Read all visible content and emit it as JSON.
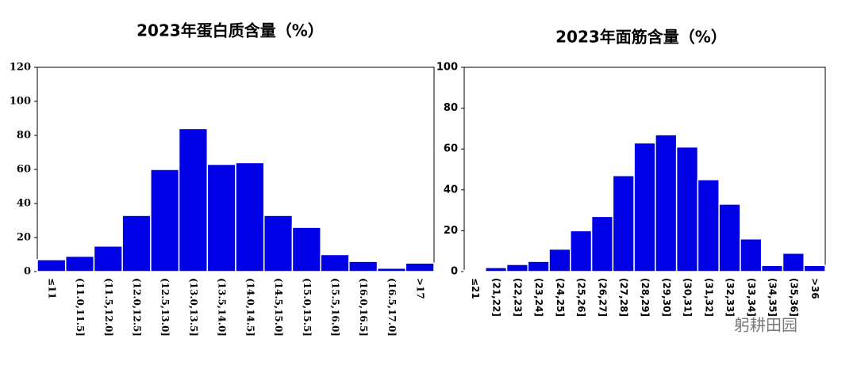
{
  "chart_data": [
    {
      "type": "bar",
      "title": "2023年蛋白质含量（%）",
      "categories": [
        "≤11",
        "(11.0,11.5]",
        "(11.5,12.0]",
        "(12.0,12.5]",
        "(12.5,13.0]",
        "(13.0,13.5]",
        "(13.5,14.0]",
        "(14.0,14.5]",
        "(14.5,15.0]",
        "(15.0,15.5]",
        "(15.5,16.0]",
        "(16.0,16.5]",
        "(16.5,17.0]",
        ">17"
      ],
      "values": [
        7,
        9,
        15,
        33,
        60,
        84,
        63,
        64,
        33,
        26,
        10,
        6,
        2,
        5
      ],
      "color": "#0000e6",
      "ylim": [
        0,
        120
      ],
      "yticks": [
        0,
        20,
        40,
        60,
        80,
        100,
        120
      ]
    },
    {
      "type": "bar",
      "title": "2023年面筋含量（%）",
      "categories": [
        "≤21",
        "(21,22]",
        "(22,23]",
        "(23,24]",
        "(24,25]",
        "(25,26]",
        "(26,27]",
        "(27,28]",
        "(28,29]",
        "(29,30]",
        "(30,31]",
        "(31,32]",
        "(32,33]",
        "(33,34]",
        "(34,35]",
        "(35,36]",
        ">36"
      ],
      "values": [
        0.5,
        2,
        3.5,
        5,
        11,
        20,
        27,
        47,
        63,
        67,
        61,
        45,
        33,
        16,
        3,
        9,
        3
      ],
      "color": "#0000e6",
      "ylim": [
        0,
        100
      ],
      "yticks": [
        0,
        20,
        40,
        60,
        80,
        100
      ]
    }
  ],
  "watermark": "躬耕田园"
}
